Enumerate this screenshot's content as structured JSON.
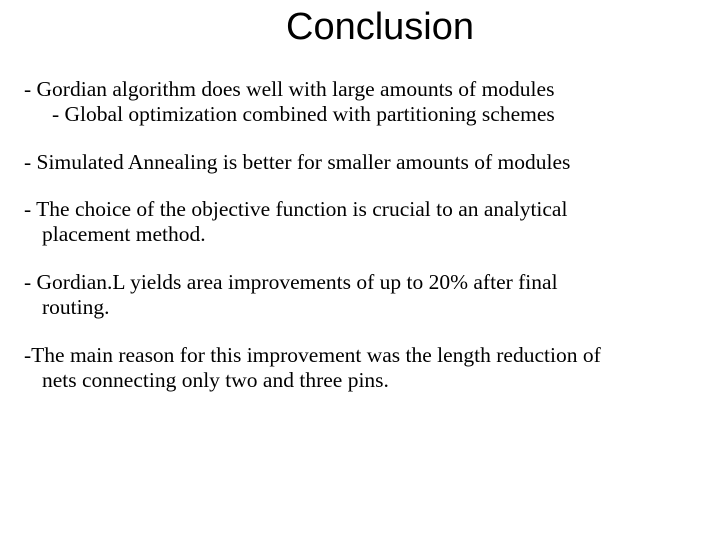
{
  "slide": {
    "title": "Conclusion",
    "title_font_family": "Arial",
    "title_font_size_pt": 38,
    "body_font_family": "Times New Roman",
    "body_font_size_pt": 21,
    "background_color": "#ffffff",
    "text_color": "#000000",
    "bullets": [
      {
        "line1": "- Gordian algorithm does well with large amounts of modules",
        "sub": "- Global optimization combined with partitioning schemes"
      },
      {
        "line1": "- Simulated Annealing is better for smaller amounts of modules"
      },
      {
        "line1": "- The choice of the objective function is crucial to an analytical",
        "cont": "placement method."
      },
      {
        "line1": "- Gordian.L yields area improvements of up to 20% after final",
        "cont": "routing."
      },
      {
        "line1": "-The main reason for this improvement was the length reduction of",
        "cont": "nets connecting only two and three pins."
      }
    ]
  }
}
